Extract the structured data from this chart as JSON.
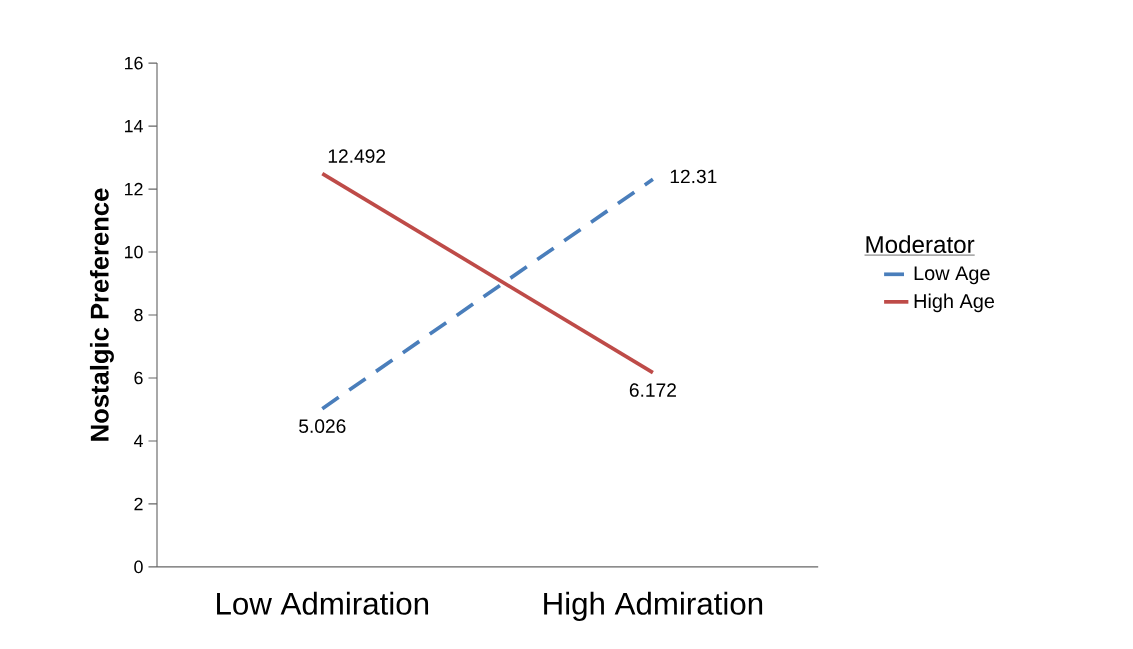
{
  "chart_data": {
    "type": "line",
    "categories": [
      "Low Admiration",
      "High Admiration"
    ],
    "ylabel": "Nostalgic Preference",
    "legend_title": "Moderator",
    "legend": "right",
    "ylim": [
      0,
      16
    ],
    "yticks": [
      0,
      2,
      4,
      6,
      8,
      10,
      12,
      14,
      16
    ],
    "data_labels": true,
    "series": [
      {
        "name": "Low Age",
        "color": "#4a7ebb",
        "line_style": "dashed",
        "values": [
          5.026,
          12.31
        ]
      },
      {
        "name": "High Age",
        "color": "#be4b48",
        "line_style": "solid",
        "values": [
          12.492,
          6.172
        ]
      }
    ]
  }
}
